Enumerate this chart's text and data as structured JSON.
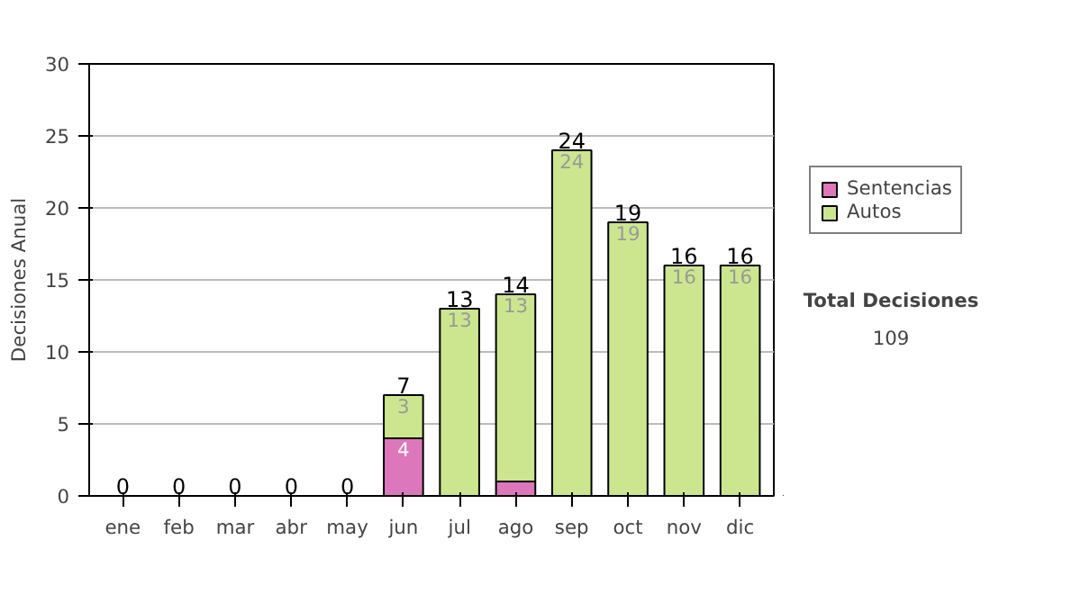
{
  "chart_data": {
    "type": "bar",
    "stacked": true,
    "ylabel": "Decisiones Anual",
    "categories": [
      "ene",
      "feb",
      "mar",
      "abr",
      "may",
      "jun",
      "jul",
      "ago",
      "sep",
      "oct",
      "nov",
      "dic"
    ],
    "series": [
      {
        "name": "Sentencias",
        "color": "#dd77bb",
        "values": [
          0,
          0,
          0,
          0,
          0,
          4,
          0,
          1,
          0,
          0,
          0,
          0
        ],
        "value_labels": [
          null,
          null,
          null,
          null,
          null,
          "4",
          null,
          null,
          null,
          null,
          null,
          null
        ]
      },
      {
        "name": "Autos",
        "color": "#cce68f",
        "values": [
          0,
          0,
          0,
          0,
          0,
          3,
          13,
          13,
          24,
          19,
          16,
          16
        ],
        "value_labels": [
          null,
          null,
          null,
          null,
          null,
          "3",
          "13",
          "13",
          "24",
          "19",
          "16",
          "16"
        ]
      }
    ],
    "totals": [
      "0",
      "0",
      "0",
      "0",
      "0",
      "7",
      "13",
      "14",
      "24",
      "19",
      "16",
      "16"
    ],
    "ylim": [
      0,
      30
    ],
    "yticks": [
      0,
      5,
      10,
      15,
      20,
      25,
      30
    ],
    "grid": "y",
    "legend": "right",
    "annotations": [
      "Total Decisiones",
      "109"
    ]
  }
}
